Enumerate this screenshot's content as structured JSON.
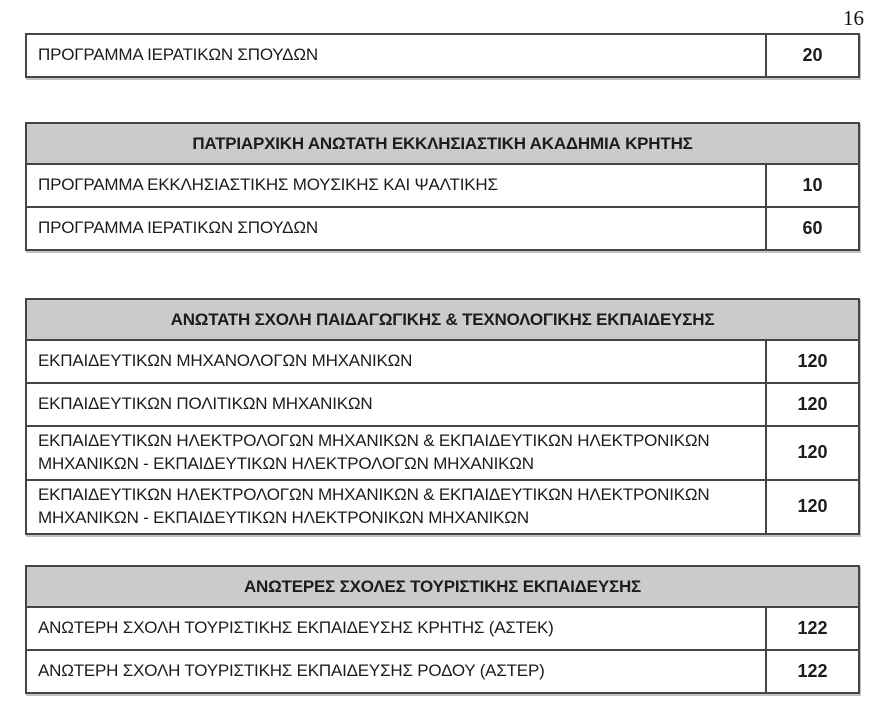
{
  "page": {
    "number": "16"
  },
  "colors": {
    "header_bg": "#cbcbcb",
    "border": "#454545",
    "text": "#1c1c1c",
    "page_bg": "#ffffff"
  },
  "tables": [
    {
      "header": null,
      "rows": [
        {
          "name": "ΠΡΟΓΡΑΜΜΑ ΙΕΡΑΤΙΚΩΝ ΣΠΟΥΔΩΝ",
          "value": "20"
        }
      ]
    },
    {
      "header": "ΠΑΤΡΙΑΡΧΙΚΗ ΑΝΩΤΑΤΗ ΕΚΚΛΗΣΙΑΣΤΙΚΗ ΑΚΑΔΗΜΙΑ ΚΡΗΤΗΣ",
      "rows": [
        {
          "name": "ΠΡΟΓΡΑΜΜΑ ΕΚΚΛΗΣΙΑΣΤΙΚΗΣ ΜΟΥΣΙΚΗΣ ΚΑΙ ΨΑΛΤΙΚΗΣ",
          "value": "10"
        },
        {
          "name": "ΠΡΟΓΡΑΜΜΑ ΙΕΡΑΤΙΚΩΝ ΣΠΟΥΔΩΝ",
          "value": "60"
        }
      ]
    },
    {
      "header": "ΑΝΩΤΑΤΗ ΣΧΟΛΗ ΠΑΙΔΑΓΩΓΙΚΗΣ & ΤΕΧΝΟΛΟΓΙΚΗΣ ΕΚΠΑΙΔΕΥΣΗΣ",
      "rows": [
        {
          "name": "ΕΚΠΑΙΔΕΥΤΙΚΩΝ ΜΗΧΑΝΟΛΟΓΩΝ ΜΗΧΑΝΙΚΩΝ",
          "value": "120"
        },
        {
          "name": "ΕΚΠΑΙΔΕΥΤΙΚΩΝ ΠΟΛΙΤΙΚΩΝ ΜΗΧΑΝΙΚΩΝ",
          "value": "120"
        },
        {
          "name": "ΕΚΠΑΙΔΕΥΤΙΚΩΝ ΗΛΕΚΤΡΟΛΟΓΩΝ ΜΗΧΑΝΙΚΩΝ & ΕΚΠΑΙΔΕΥΤΙΚΩΝ ΗΛΕΚΤΡΟΝΙΚΩΝ ΜΗΧΑΝΙΚΩΝ - ΕΚΠΑΙΔΕΥΤΙΚΩΝ ΗΛΕΚΤΡΟΛΟΓΩΝ ΜΗΧΑΝΙΚΩΝ",
          "value": "120"
        },
        {
          "name": "ΕΚΠΑΙΔΕΥΤΙΚΩΝ ΗΛΕΚΤΡΟΛΟΓΩΝ ΜΗΧΑΝΙΚΩΝ & ΕΚΠΑΙΔΕΥΤΙΚΩΝ ΗΛΕΚΤΡΟΝΙΚΩΝ ΜΗΧΑΝΙΚΩΝ - ΕΚΠΑΙΔΕΥΤΙΚΩΝ  ΗΛΕΚΤΡΟΝΙΚΩΝ ΜΗΧΑΝΙΚΩΝ",
          "value": "120"
        }
      ]
    },
    {
      "header": "ΑΝΩΤΕΡΕΣ ΣΧΟΛΕΣ ΤΟΥΡΙΣΤΙΚΗΣ ΕΚΠΑΙΔΕΥΣΗΣ",
      "rows": [
        {
          "name": "ΑΝΩΤΕΡΗ ΣΧΟΛΗ ΤΟΥΡΙΣΤΙΚΗΣ ΕΚΠΑΙΔΕΥΣΗΣ ΚΡΗΤΗΣ (ΑΣΤΕΚ)",
          "value": "122"
        },
        {
          "name": "ΑΝΩΤΕΡΗ ΣΧΟΛΗ ΤΟΥΡΙΣΤΙΚΗΣ ΕΚΠΑΙΔΕΥΣΗΣ ΡΟΔΟΥ (ΑΣΤΕΡ)",
          "value": "122"
        }
      ]
    }
  ]
}
